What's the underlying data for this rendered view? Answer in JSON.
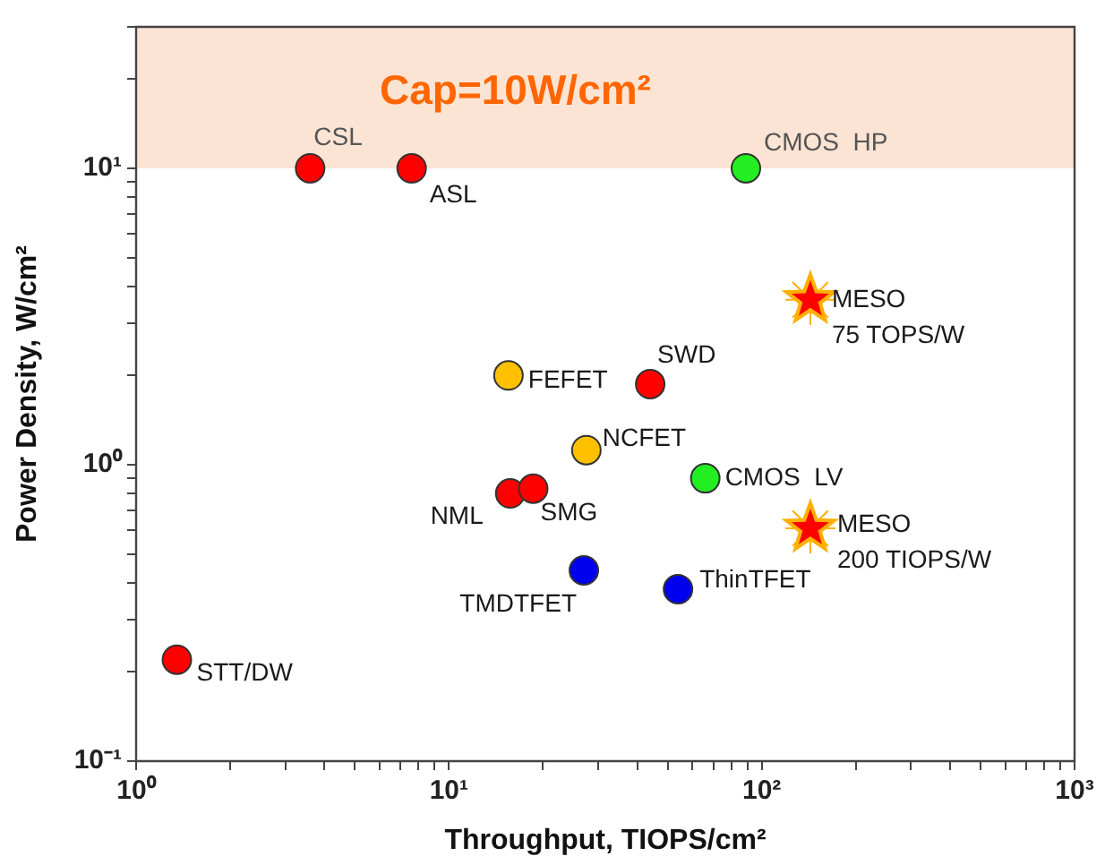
{
  "chart_data": {
    "type": "scatter",
    "xlabel": "Throughput, TIOPS/cm²",
    "ylabel": "Power Density, W/cm²",
    "log": "xy",
    "grid": false,
    "legend": false,
    "xlim": [
      1,
      1000
    ],
    "ylim": [
      0.1,
      30
    ],
    "xticks": [
      {
        "value": 1,
        "label": "10⁰"
      },
      {
        "value": 2,
        "label": null
      },
      {
        "value": 3,
        "label": null
      },
      {
        "value": 4,
        "label": null
      },
      {
        "value": 5,
        "label": null
      },
      {
        "value": 6,
        "label": null
      },
      {
        "value": 7,
        "label": null
      },
      {
        "value": 8,
        "label": null
      },
      {
        "value": 9,
        "label": null
      },
      {
        "value": 10,
        "label": "10¹"
      },
      {
        "value": 20,
        "label": null
      },
      {
        "value": 30,
        "label": null
      },
      {
        "value": 40,
        "label": null
      },
      {
        "value": 50,
        "label": null
      },
      {
        "value": 60,
        "label": null
      },
      {
        "value": 70,
        "label": null
      },
      {
        "value": 80,
        "label": null
      },
      {
        "value": 90,
        "label": null
      },
      {
        "value": 100,
        "label": "10²"
      },
      {
        "value": 200,
        "label": null
      },
      {
        "value": 300,
        "label": null
      },
      {
        "value": 400,
        "label": null
      },
      {
        "value": 500,
        "label": null
      },
      {
        "value": 600,
        "label": null
      },
      {
        "value": 700,
        "label": null
      },
      {
        "value": 800,
        "label": null
      },
      {
        "value": 900,
        "label": null
      },
      {
        "value": 1000,
        "label": "10³"
      }
    ],
    "yticks": [
      {
        "value": 0.1,
        "label": "10⁻¹"
      },
      {
        "value": 0.2,
        "label": null
      },
      {
        "value": 0.3,
        "label": null
      },
      {
        "value": 0.4,
        "label": null
      },
      {
        "value": 0.5,
        "label": null
      },
      {
        "value": 0.6,
        "label": null
      },
      {
        "value": 0.7,
        "label": null
      },
      {
        "value": 0.8,
        "label": null
      },
      {
        "value": 0.9,
        "label": null
      },
      {
        "value": 1,
        "label": "10⁰"
      },
      {
        "value": 2,
        "label": null
      },
      {
        "value": 3,
        "label": null
      },
      {
        "value": 4,
        "label": null
      },
      {
        "value": 5,
        "label": null
      },
      {
        "value": 6,
        "label": null
      },
      {
        "value": 7,
        "label": null
      },
      {
        "value": 8,
        "label": null
      },
      {
        "value": 9,
        "label": null
      },
      {
        "value": 10,
        "label": "10¹"
      },
      {
        "value": 20,
        "label": null
      },
      {
        "value": 30,
        "label": null
      }
    ],
    "bands": [
      {
        "axis": "y",
        "from": 10,
        "to": 30,
        "label": "Cap=10W/cm²",
        "color": "#fce4d4"
      }
    ],
    "series": [
      {
        "color": "#ff0000",
        "marker": "circle",
        "x": [
          1.35,
          3.6,
          7.6,
          15.7,
          18.6,
          44
        ],
        "values": [
          0.22,
          10,
          10,
          0.8,
          0.83,
          1.87
        ]
      },
      {
        "color": "#ffc000",
        "marker": "circle",
        "x": [
          15.5,
          27.5
        ],
        "values": [
          2.0,
          1.12
        ]
      },
      {
        "color": "#22ee22",
        "marker": "circle",
        "x": [
          66,
          89
        ],
        "values": [
          0.9,
          10
        ]
      },
      {
        "color": "#0000ee",
        "marker": "circle",
        "x": [
          27,
          54
        ],
        "values": [
          0.44,
          0.38
        ]
      },
      {
        "color": "#ff0000",
        "marker": "star",
        "x": [
          143,
          143
        ],
        "values": [
          3.6,
          0.61
        ]
      }
    ],
    "annotations": [
      {
        "text": "STT/DW",
        "x": 1.35,
        "y": 0.22
      },
      {
        "text": "CSL",
        "x": 3.6,
        "y": 10
      },
      {
        "text": "ASL",
        "x": 7.6,
        "y": 10
      },
      {
        "text": "FEFET",
        "x": 15.5,
        "y": 2.0
      },
      {
        "text": "NML",
        "x": 15.7,
        "y": 0.8
      },
      {
        "text": "SMG",
        "x": 18.6,
        "y": 0.83
      },
      {
        "text": "SWD",
        "x": 44,
        "y": 1.87
      },
      {
        "text": "NCFET",
        "x": 27.5,
        "y": 1.12
      },
      {
        "text": "TMDTFET",
        "x": 27,
        "y": 0.44
      },
      {
        "text": "ThinTFET",
        "x": 54,
        "y": 0.38
      },
      {
        "text": "CMOS  LV",
        "x": 66,
        "y": 0.9
      },
      {
        "text": "CMOS  HP",
        "x": 89,
        "y": 10
      },
      {
        "text": "MESO\n75 TOPS/W",
        "x": 143,
        "y": 3.6
      },
      {
        "text": "MESO\n200 TIOPS/W",
        "x": 143,
        "y": 0.61
      }
    ]
  }
}
